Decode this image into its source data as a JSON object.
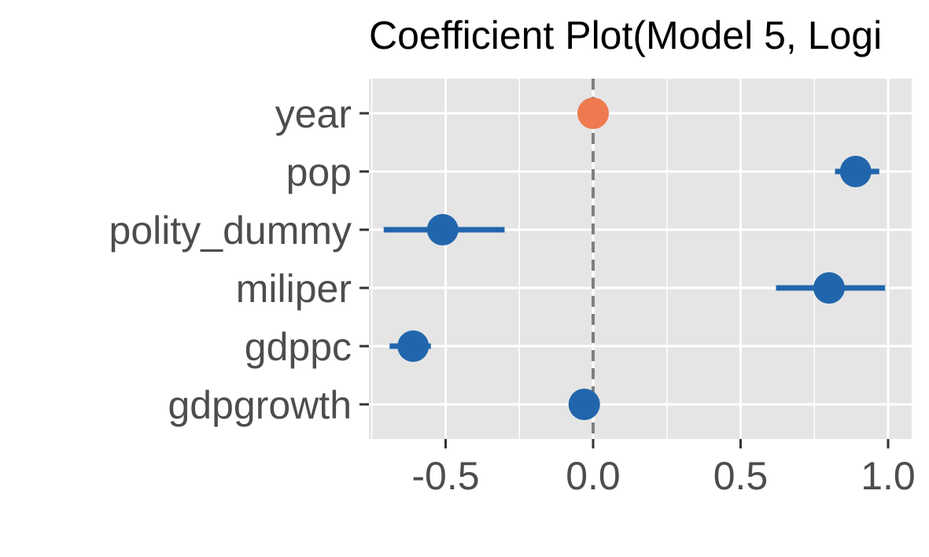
{
  "chart_data": {
    "type": "scatter",
    "title": "Coefficient Plot(Model 5, Logi",
    "xlabel": "",
    "ylabel": "",
    "xlim": [
      -0.76,
      1.08
    ],
    "x_ticks": [
      -0.5,
      0.0,
      0.5,
      1.0
    ],
    "x_tick_labels": [
      "-0.5",
      "0.0",
      "0.5",
      "1.0"
    ],
    "reference_line": 0,
    "grid": true,
    "categories": [
      "year",
      "pop",
      "polity_dummy",
      "miliper",
      "gdppc",
      "gdpgrowth"
    ],
    "estimates": [
      0.0,
      0.89,
      -0.51,
      0.8,
      -0.61,
      -0.03
    ],
    "ci_low": [
      0.0,
      0.82,
      -0.71,
      0.62,
      -0.69,
      -0.03
    ],
    "ci_high": [
      0.0,
      0.97,
      -0.3,
      0.99,
      -0.55,
      -0.03
    ],
    "significant": [
      false,
      true,
      true,
      true,
      true,
      true
    ],
    "colors": {
      "significant": "#2166ac",
      "not_significant": "#ef7a50",
      "panel": "#e5e5e5",
      "grid": "#ffffff",
      "reference_line": "#7f7f7f"
    }
  }
}
